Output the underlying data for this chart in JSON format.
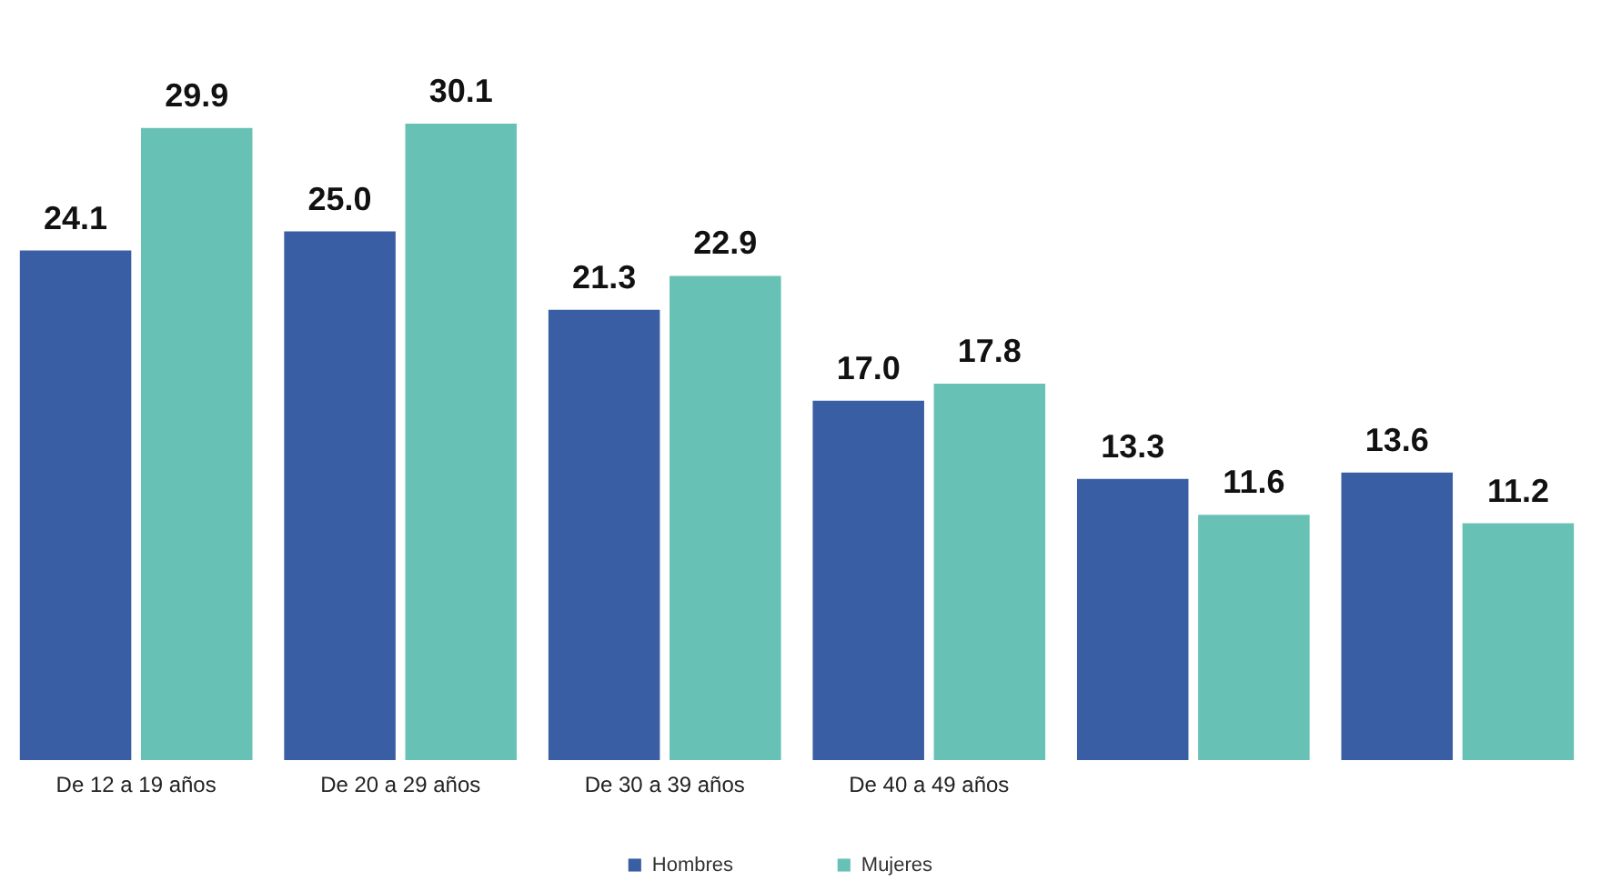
{
  "chart_data": {
    "type": "bar",
    "categories": [
      "De 12 a 19 años",
      "De 20 a 29 años",
      "De 30 a 39 años",
      "De 40 a 49 años",
      null,
      null
    ],
    "series": [
      {
        "name": "Hombres",
        "color": "#3a5ea3",
        "values": [
          24.1,
          25.0,
          21.3,
          17.0,
          13.3,
          13.6
        ],
        "value_labels": [
          "24.1",
          "25.0",
          "21.3",
          "17.0",
          "13.3",
          "13.6"
        ]
      },
      {
        "name": "Mujeres",
        "color": "#67c1b5",
        "values": [
          29.9,
          30.1,
          22.9,
          17.8,
          11.6,
          11.2
        ],
        "value_labels": [
          "29.9",
          "30.1",
          "22.9",
          "17.8",
          "11.6",
          "11.2"
        ]
      }
    ],
    "legend": "bottom"
  }
}
